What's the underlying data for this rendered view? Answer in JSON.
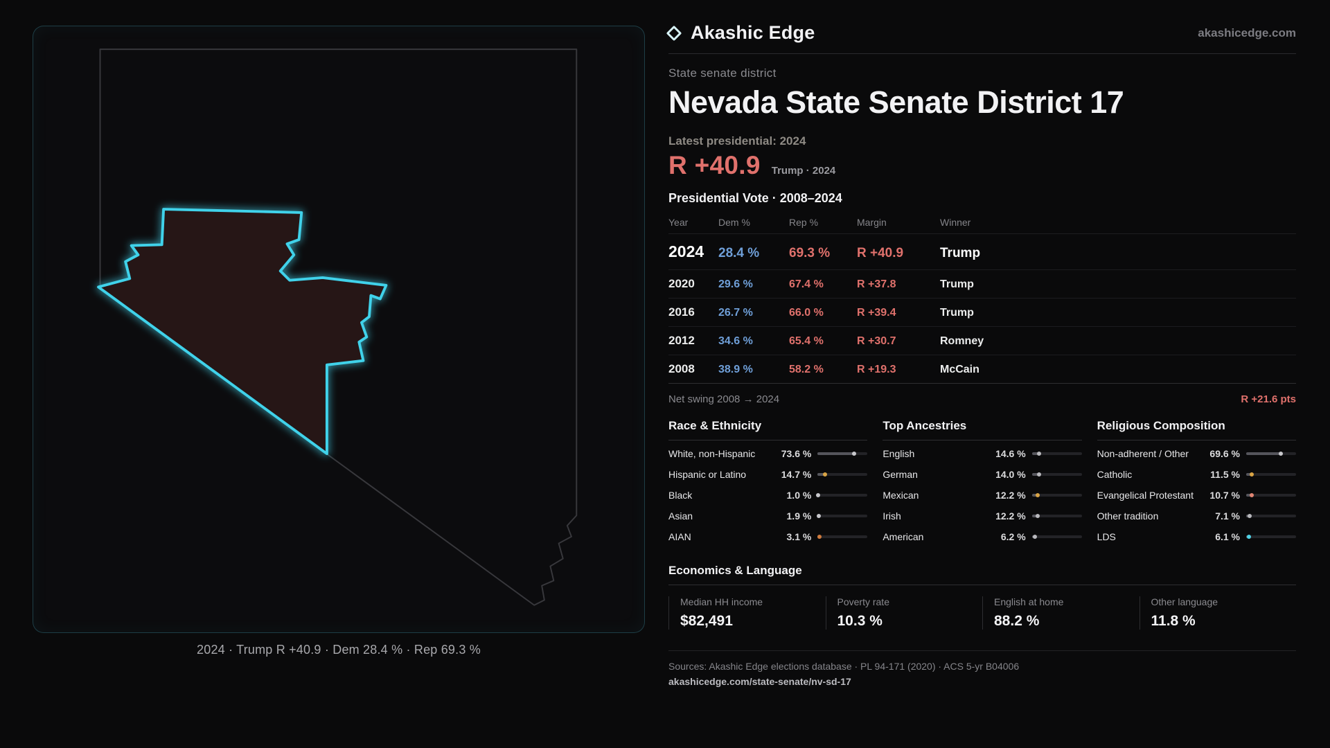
{
  "colors": {
    "background": "#0a0a0b",
    "accent_cyan": "#41d0e8",
    "dem_blue": "#6f9fd8",
    "rep_red": "#e0716c",
    "text_muted": "#8a8a8f",
    "district_fill": "#271316"
  },
  "map_panel": {
    "caption": "2024 · Trump R +40.9 · Dem 28.4 % · Rep 69.3 %"
  },
  "header": {
    "brand": "Akashic Edge",
    "site_link": "akashicedge.com",
    "kicker": "State senate district",
    "title": "Nevada State Senate District 17",
    "latest_label": "Latest presidential: 2024",
    "latest_margin": "R +40.9",
    "latest_caption": "Trump · 2024"
  },
  "vote_table": {
    "title": "Presidential Vote · 2008–2024",
    "columns": [
      "Year",
      "Dem %",
      "Rep %",
      "Margin",
      "Winner"
    ],
    "rows": [
      {
        "year": "2024",
        "dem": "28.4 %",
        "rep": "69.3 %",
        "margin": "R +40.9",
        "winner": "Trump"
      },
      {
        "year": "2020",
        "dem": "29.6 %",
        "rep": "67.4 %",
        "margin": "R +37.8",
        "winner": "Trump"
      },
      {
        "year": "2016",
        "dem": "26.7 %",
        "rep": "66.0 %",
        "margin": "R +39.4",
        "winner": "Trump"
      },
      {
        "year": "2012",
        "dem": "34.6 %",
        "rep": "65.4 %",
        "margin": "R +30.7",
        "winner": "Romney"
      },
      {
        "year": "2008",
        "dem": "38.9 %",
        "rep": "58.2 %",
        "margin": "R +19.3",
        "winner": "McCain"
      }
    ],
    "net_swing_label": "Net swing 2008 → 2024",
    "net_swing_value": "R +21.6 pts"
  },
  "demographics": [
    {
      "title": "Race & Ethnicity",
      "items": [
        {
          "label": "White, non-Hispanic",
          "value": "73.6 %",
          "pct": 73.6,
          "color": "#c8c8cc"
        },
        {
          "label": "Hispanic or Latino",
          "value": "14.7 %",
          "pct": 14.7,
          "color": "#d9a445"
        },
        {
          "label": "Black",
          "value": "1.0 %",
          "pct": 1.0,
          "color": "#c8c8cc"
        },
        {
          "label": "Asian",
          "value": "1.9 %",
          "pct": 1.9,
          "color": "#c8c8cc"
        },
        {
          "label": "AIAN",
          "value": "3.1 %",
          "pct": 3.1,
          "color": "#cf7a3d"
        }
      ]
    },
    {
      "title": "Top Ancestries",
      "items": [
        {
          "label": "English",
          "value": "14.6 %",
          "pct": 14.6,
          "color": "#b9b9bd"
        },
        {
          "label": "German",
          "value": "14.0 %",
          "pct": 14.0,
          "color": "#b9b9bd"
        },
        {
          "label": "Mexican",
          "value": "12.2 %",
          "pct": 12.2,
          "color": "#d9a445"
        },
        {
          "label": "Irish",
          "value": "12.2 %",
          "pct": 12.2,
          "color": "#b9b9bd"
        },
        {
          "label": "American",
          "value": "6.2 %",
          "pct": 6.2,
          "color": "#b9b9bd"
        }
      ]
    },
    {
      "title": "Religious Composition",
      "items": [
        {
          "label": "Non-adherent / Other",
          "value": "69.6 %",
          "pct": 69.6,
          "color": "#c8c8cc"
        },
        {
          "label": "Catholic",
          "value": "11.5 %",
          "pct": 11.5,
          "color": "#d9a445"
        },
        {
          "label": "Evangelical Protestant",
          "value": "10.7 %",
          "pct": 10.7,
          "color": "#e08573"
        },
        {
          "label": "Other tradition",
          "value": "7.1 %",
          "pct": 7.1,
          "color": "#b9b9bd"
        },
        {
          "label": "LDS",
          "value": "6.1 %",
          "pct": 6.1,
          "color": "#4fd4e8"
        }
      ]
    }
  ],
  "economics": {
    "title": "Economics & Language",
    "stats": [
      {
        "label": "Median HH income",
        "value": "$82,491"
      },
      {
        "label": "Poverty rate",
        "value": "10.3 %"
      },
      {
        "label": "English at home",
        "value": "88.2 %"
      },
      {
        "label": "Other language",
        "value": "11.8 %"
      }
    ]
  },
  "footer": {
    "sources": "Sources: Akashic Edge elections database · PL 94-171 (2020) · ACS 5-yr B04006",
    "permalink": "akashicedge.com/state-senate/nv-sd-17"
  },
  "chart_data": [
    {
      "type": "table",
      "title": "Presidential Vote · 2008–2024",
      "columns": [
        "Year",
        "Dem %",
        "Rep %",
        "Margin",
        "Winner"
      ],
      "rows": [
        [
          2024,
          28.4,
          69.3,
          "R +40.9",
          "Trump"
        ],
        [
          2020,
          29.6,
          67.4,
          "R +37.8",
          "Trump"
        ],
        [
          2016,
          26.7,
          66.0,
          "R +39.4",
          "Trump"
        ],
        [
          2012,
          34.6,
          65.4,
          "R +30.7",
          "Romney"
        ],
        [
          2008,
          38.9,
          58.2,
          "R +19.3",
          "McCain"
        ]
      ],
      "annotations": [
        "Net swing 2008 → 2024: R +21.6 pts",
        "Latest presidential 2024: R +40.9 (Trump)"
      ]
    },
    {
      "type": "bar",
      "title": "Race & Ethnicity",
      "categories": [
        "White, non-Hispanic",
        "Hispanic or Latino",
        "Black",
        "Asian",
        "AIAN"
      ],
      "values": [
        73.6,
        14.7,
        1.0,
        1.9,
        3.1
      ],
      "xlabel": "",
      "ylabel": "Percent",
      "xlim": [
        0,
        100
      ]
    },
    {
      "type": "bar",
      "title": "Top Ancestries",
      "categories": [
        "English",
        "German",
        "Mexican",
        "Irish",
        "American"
      ],
      "values": [
        14.6,
        14.0,
        12.2,
        12.2,
        6.2
      ],
      "xlabel": "",
      "ylabel": "Percent",
      "xlim": [
        0,
        100
      ]
    },
    {
      "type": "bar",
      "title": "Religious Composition",
      "categories": [
        "Non-adherent / Other",
        "Catholic",
        "Evangelical Protestant",
        "Other tradition",
        "LDS"
      ],
      "values": [
        69.6,
        11.5,
        10.7,
        7.1,
        6.1
      ],
      "xlabel": "",
      "ylabel": "Percent",
      "xlim": [
        0,
        100
      ]
    },
    {
      "type": "table",
      "title": "Economics & Language",
      "columns": [
        "Median HH income",
        "Poverty rate",
        "English at home",
        "Other language"
      ],
      "rows": [
        [
          "$82,491",
          "10.3 %",
          "88.2 %",
          "11.8 %"
        ]
      ]
    }
  ]
}
